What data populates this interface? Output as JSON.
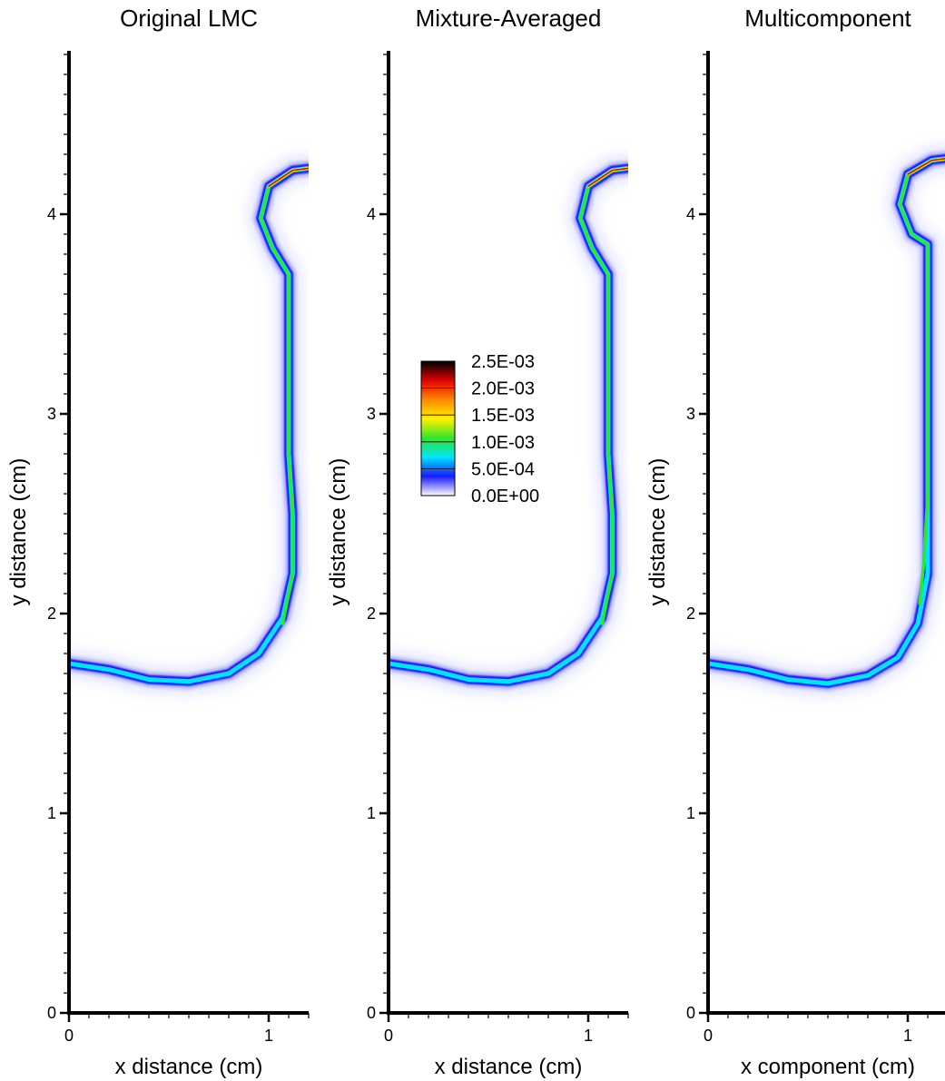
{
  "chart_data": {
    "type": "heatmap",
    "colorbar": {
      "ticks": [
        "2.5E-03",
        "2.0E-03",
        "1.5E-03",
        "1.0E-03",
        "5.0E-04",
        "0.0E+00"
      ],
      "tick_values": [
        0.0025,
        0.002,
        0.0015,
        0.001,
        0.0005,
        0.0
      ],
      "range": [
        0,
        0.0025
      ],
      "colors": [
        "#ffffff",
        "#1a1aff",
        "#00e5ff",
        "#2ee62e",
        "#fff200",
        "#ff8800",
        "#e00000",
        "#000000"
      ],
      "placement": "inside middle panel, upper-left"
    },
    "panels": [
      {
        "title": "Original LMC",
        "xlabel": "x distance (cm)",
        "ylabel": "y distance (cm)",
        "xlim": [
          0,
          1.2
        ],
        "ylim": [
          0,
          4.8
        ],
        "x_ticks": [
          "0",
          "1"
        ],
        "y_ticks": [
          "0",
          "1",
          "2",
          "3",
          "4"
        ],
        "flame_front": [
          [
            0,
            1.75
          ],
          [
            0.2,
            1.72
          ],
          [
            0.4,
            1.67
          ],
          [
            0.6,
            1.66
          ],
          [
            0.8,
            1.7
          ],
          [
            0.95,
            1.8
          ],
          [
            1.07,
            1.98
          ],
          [
            1.12,
            2.2
          ],
          [
            1.12,
            2.5
          ],
          [
            1.1,
            2.8
          ],
          [
            1.1,
            3.1
          ],
          [
            1.1,
            3.4
          ],
          [
            1.1,
            3.7
          ],
          [
            1.02,
            3.83
          ],
          [
            0.96,
            3.98
          ],
          [
            1.0,
            4.14
          ],
          [
            1.12,
            4.22
          ],
          [
            1.2,
            4.23
          ]
        ],
        "peak_zone": [
          [
            1.07,
            1.95
          ],
          [
            1.12,
            2.2
          ],
          [
            1.12,
            2.5
          ],
          [
            1.1,
            2.8
          ],
          [
            1.1,
            3.1
          ],
          [
            1.1,
            3.4
          ],
          [
            1.1,
            3.7
          ],
          [
            1.02,
            3.83
          ],
          [
            0.96,
            3.98
          ],
          [
            1.0,
            4.14
          ],
          [
            1.12,
            4.22
          ],
          [
            1.2,
            4.23
          ]
        ]
      },
      {
        "title": "Mixture-Averaged",
        "xlabel": "x distance (cm)",
        "ylabel": "y distance (cm)",
        "xlim": [
          0,
          1.2
        ],
        "ylim": [
          0,
          4.8
        ],
        "x_ticks": [
          "0",
          "1"
        ],
        "y_ticks": [
          "0",
          "1",
          "2",
          "3",
          "4"
        ],
        "flame_front": [
          [
            0,
            1.75
          ],
          [
            0.2,
            1.72
          ],
          [
            0.4,
            1.67
          ],
          [
            0.6,
            1.66
          ],
          [
            0.8,
            1.7
          ],
          [
            0.95,
            1.8
          ],
          [
            1.07,
            1.98
          ],
          [
            1.12,
            2.2
          ],
          [
            1.12,
            2.5
          ],
          [
            1.1,
            2.8
          ],
          [
            1.1,
            3.1
          ],
          [
            1.1,
            3.4
          ],
          [
            1.1,
            3.7
          ],
          [
            1.02,
            3.83
          ],
          [
            0.96,
            3.98
          ],
          [
            1.0,
            4.14
          ],
          [
            1.12,
            4.22
          ],
          [
            1.2,
            4.23
          ]
        ],
        "peak_zone": [
          [
            1.07,
            1.95
          ],
          [
            1.12,
            2.2
          ],
          [
            1.12,
            2.5
          ],
          [
            1.1,
            2.8
          ],
          [
            1.1,
            3.1
          ],
          [
            1.1,
            3.4
          ],
          [
            1.1,
            3.7
          ],
          [
            1.02,
            3.83
          ],
          [
            0.96,
            3.98
          ],
          [
            1.0,
            4.14
          ],
          [
            1.12,
            4.22
          ],
          [
            1.2,
            4.23
          ]
        ]
      },
      {
        "title": "Multicomponent",
        "xlabel": "x component (cm)",
        "ylabel": "y distance (cm)",
        "xlim": [
          0,
          1.2
        ],
        "ylim": [
          0,
          4.8
        ],
        "x_ticks": [
          "0",
          "1"
        ],
        "y_ticks": [
          "0",
          "1",
          "2",
          "3",
          "4"
        ],
        "flame_front": [
          [
            0,
            1.75
          ],
          [
            0.2,
            1.72
          ],
          [
            0.4,
            1.67
          ],
          [
            0.6,
            1.65
          ],
          [
            0.8,
            1.69
          ],
          [
            0.95,
            1.78
          ],
          [
            1.05,
            1.95
          ],
          [
            1.1,
            2.2
          ],
          [
            1.1,
            2.55
          ],
          [
            1.1,
            2.9
          ],
          [
            1.1,
            3.2
          ],
          [
            1.1,
            3.5
          ],
          [
            1.1,
            3.85
          ],
          [
            1.02,
            3.9
          ],
          [
            0.96,
            4.05
          ],
          [
            1.0,
            4.2
          ],
          [
            1.12,
            4.27
          ],
          [
            1.2,
            4.28
          ]
        ],
        "peak_zone": [
          [
            1.06,
            2.05
          ],
          [
            1.08,
            2.25
          ],
          [
            1.1,
            2.6
          ],
          [
            1.1,
            2.9
          ],
          [
            1.1,
            3.2
          ],
          [
            1.1,
            3.5
          ],
          [
            1.1,
            3.85
          ],
          [
            1.02,
            3.9
          ],
          [
            0.96,
            4.05
          ],
          [
            1.0,
            4.2
          ],
          [
            1.12,
            4.27
          ],
          [
            1.2,
            4.28
          ]
        ]
      }
    ]
  }
}
